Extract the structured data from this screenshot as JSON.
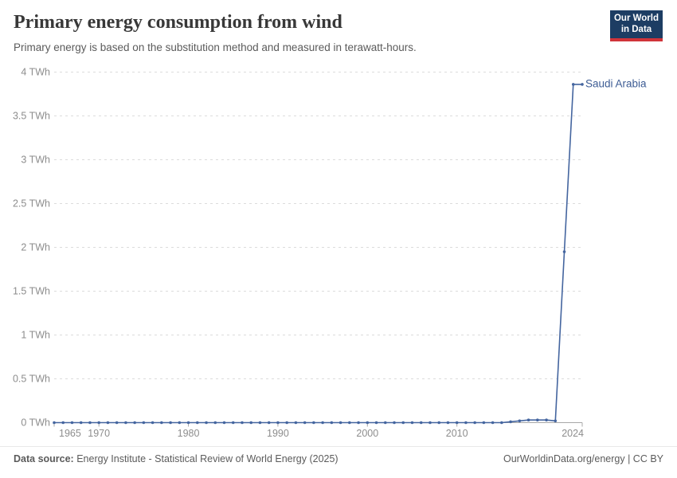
{
  "header": {
    "title": "Primary energy consumption from wind",
    "subtitle": "Primary energy is based on the substitution method and measured in terawatt-hours."
  },
  "logo": {
    "line1": "Our World",
    "line2": "in Data",
    "bg_color": "#1d3d63",
    "accent_color": "#d0343a",
    "text_color": "#ffffff"
  },
  "chart_data": {
    "type": "line",
    "title": "Primary energy consumption from wind",
    "subtitle": "Primary energy is based on the substitution method and measured in terawatt-hours.",
    "unit": "TWh",
    "x": [
      1965,
      1966,
      1967,
      1968,
      1969,
      1970,
      1971,
      1972,
      1973,
      1974,
      1975,
      1976,
      1977,
      1978,
      1979,
      1980,
      1981,
      1982,
      1983,
      1984,
      1985,
      1986,
      1987,
      1988,
      1989,
      1990,
      1991,
      1992,
      1993,
      1994,
      1995,
      1996,
      1997,
      1998,
      1999,
      2000,
      2001,
      2002,
      2003,
      2004,
      2005,
      2006,
      2007,
      2008,
      2009,
      2010,
      2011,
      2012,
      2013,
      2014,
      2015,
      2016,
      2017,
      2018,
      2019,
      2020,
      2021,
      2022,
      2023,
      2024
    ],
    "series": [
      {
        "name": "Saudi Arabia",
        "color": "#44659f",
        "values": [
          0,
          0,
          0,
          0,
          0,
          0,
          0,
          0,
          0,
          0,
          0,
          0,
          0,
          0,
          0,
          0,
          0,
          0,
          0,
          0,
          0,
          0,
          0,
          0,
          0,
          0,
          0,
          0,
          0,
          0,
          0,
          0,
          0,
          0,
          0,
          0,
          0,
          0,
          0,
          0,
          0,
          0,
          0,
          0,
          0,
          0,
          0,
          0,
          0,
          0,
          0,
          0.01,
          0.02,
          0.03,
          0.03,
          0.03,
          0.02,
          1.95,
          3.86,
          3.86
        ]
      }
    ],
    "ylim": [
      0,
      4
    ],
    "xlim": [
      1965,
      2024
    ],
    "y_ticks": [
      {
        "value": 0,
        "label": "0 TWh"
      },
      {
        "value": 0.5,
        "label": "0.5 TWh"
      },
      {
        "value": 1,
        "label": "1 TWh"
      },
      {
        "value": 1.5,
        "label": "1.5 TWh"
      },
      {
        "value": 2,
        "label": "2 TWh"
      },
      {
        "value": 2.5,
        "label": "2.5 TWh"
      },
      {
        "value": 3,
        "label": "3 TWh"
      },
      {
        "value": 3.5,
        "label": "3.5 TWh"
      },
      {
        "value": 4,
        "label": "4 TWh"
      }
    ],
    "x_ticks": [
      1965,
      1970,
      1980,
      1990,
      2000,
      2010,
      2024
    ],
    "grid": "horizontal-dashed",
    "grid_color": "#dcdcdc",
    "axis_color": "#a8a8a8",
    "tick_label_color": "#8d8d8d",
    "legend_position": "end-of-line-label",
    "markers": true
  },
  "footer": {
    "source_label": "Data source:",
    "source_text": " Energy Institute - Statistical Review of World Energy (2025)",
    "link_text": "OurWorldinData.org/energy",
    "license": " | CC BY"
  }
}
